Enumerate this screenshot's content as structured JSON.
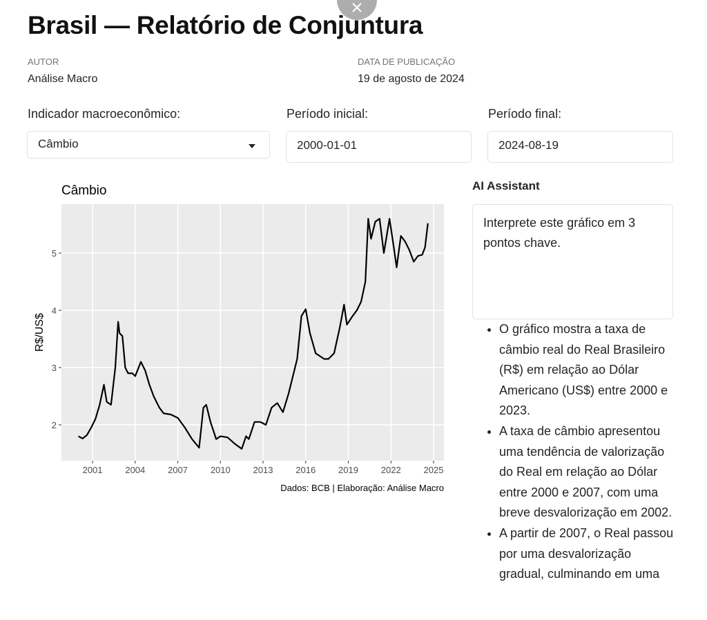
{
  "header": {
    "title": "Brasil — Relatório de Conjuntura",
    "author_label": "AUTOR",
    "author": "Análise Macro",
    "date_label": "DATA DE PUBLICAÇÃO",
    "date": "19 de agosto de 2024"
  },
  "controls": {
    "indicator_label": "Indicador macroeconômico:",
    "indicator_value": "Câmbio",
    "start_label": "Período inicial:",
    "start_value": "2000-01-01",
    "end_label": "Período final:",
    "end_value": "2024-08-19"
  },
  "chart_data": {
    "type": "line",
    "title": "Câmbio",
    "y_label": "R$/US$",
    "caption": "Dados: BCB | Elaboração: Análise Macro",
    "color": "#000000",
    "grid": true,
    "x": [
      2000.0,
      2000.3,
      2000.6,
      2000.9,
      2001.2,
      2001.5,
      2001.8,
      2002.0,
      2002.3,
      2002.6,
      2002.8,
      2002.9,
      2003.1,
      2003.3,
      2003.5,
      2003.8,
      2004.0,
      2004.4,
      2004.7,
      2005.0,
      2005.3,
      2005.7,
      2006.0,
      2006.5,
      2007.0,
      2007.5,
      2008.0,
      2008.5,
      2008.8,
      2009.0,
      2009.3,
      2009.7,
      2010.0,
      2010.5,
      2011.0,
      2011.5,
      2011.8,
      2012.0,
      2012.4,
      2012.8,
      2013.2,
      2013.6,
      2014.0,
      2014.4,
      2014.8,
      2015.1,
      2015.4,
      2015.7,
      2016.0,
      2016.3,
      2016.7,
      2017.0,
      2017.3,
      2017.6,
      2018.0,
      2018.4,
      2018.7,
      2018.9,
      2019.3,
      2019.6,
      2019.9,
      2020.2,
      2020.4,
      2020.6,
      2020.9,
      2021.2,
      2021.5,
      2021.9,
      2022.2,
      2022.4,
      2022.7,
      2023.0,
      2023.3,
      2023.6,
      2023.9,
      2024.2,
      2024.4,
      2024.6
    ],
    "values": [
      1.8,
      1.76,
      1.82,
      1.95,
      2.1,
      2.35,
      2.7,
      2.4,
      2.35,
      3.0,
      3.8,
      3.6,
      3.55,
      3.0,
      2.9,
      2.9,
      2.85,
      3.1,
      2.95,
      2.7,
      2.5,
      2.3,
      2.2,
      2.18,
      2.12,
      1.95,
      1.75,
      1.6,
      2.3,
      2.35,
      2.05,
      1.75,
      1.8,
      1.78,
      1.67,
      1.58,
      1.8,
      1.75,
      2.05,
      2.05,
      2.0,
      2.3,
      2.38,
      2.22,
      2.55,
      2.85,
      3.15,
      3.9,
      4.02,
      3.6,
      3.25,
      3.2,
      3.15,
      3.15,
      3.25,
      3.7,
      4.1,
      3.75,
      3.9,
      4.0,
      4.15,
      4.5,
      5.6,
      5.25,
      5.55,
      5.6,
      5.0,
      5.6,
      5.1,
      4.75,
      5.3,
      5.2,
      5.05,
      4.85,
      4.95,
      4.97,
      5.1,
      5.52
    ],
    "xlim": [
      1998.81,
      2025.73
    ],
    "xticks": [
      2001,
      2004,
      2007,
      2010,
      2013,
      2016,
      2019,
      2022,
      2025
    ],
    "ylim": [
      1.373,
      5.855
    ],
    "yticks": [
      2,
      3,
      4,
      5
    ]
  },
  "assistant": {
    "title": "AI Assistant",
    "prompt": "Interprete este gráfico em 3 pontos chave.",
    "response": [
      "O gráfico mostra a taxa de câmbio real do Real Brasileiro (R$) em relação ao Dólar Americano (US$) entre 2000 e 2023.",
      "A taxa de câmbio apresentou uma tendência de valorização do Real em relação ao Dólar entre 2000 e 2007, com uma breve desvalorização em 2002.",
      "A partir de 2007, o Real passou por uma desvalorização gradual, culminando em uma"
    ]
  }
}
